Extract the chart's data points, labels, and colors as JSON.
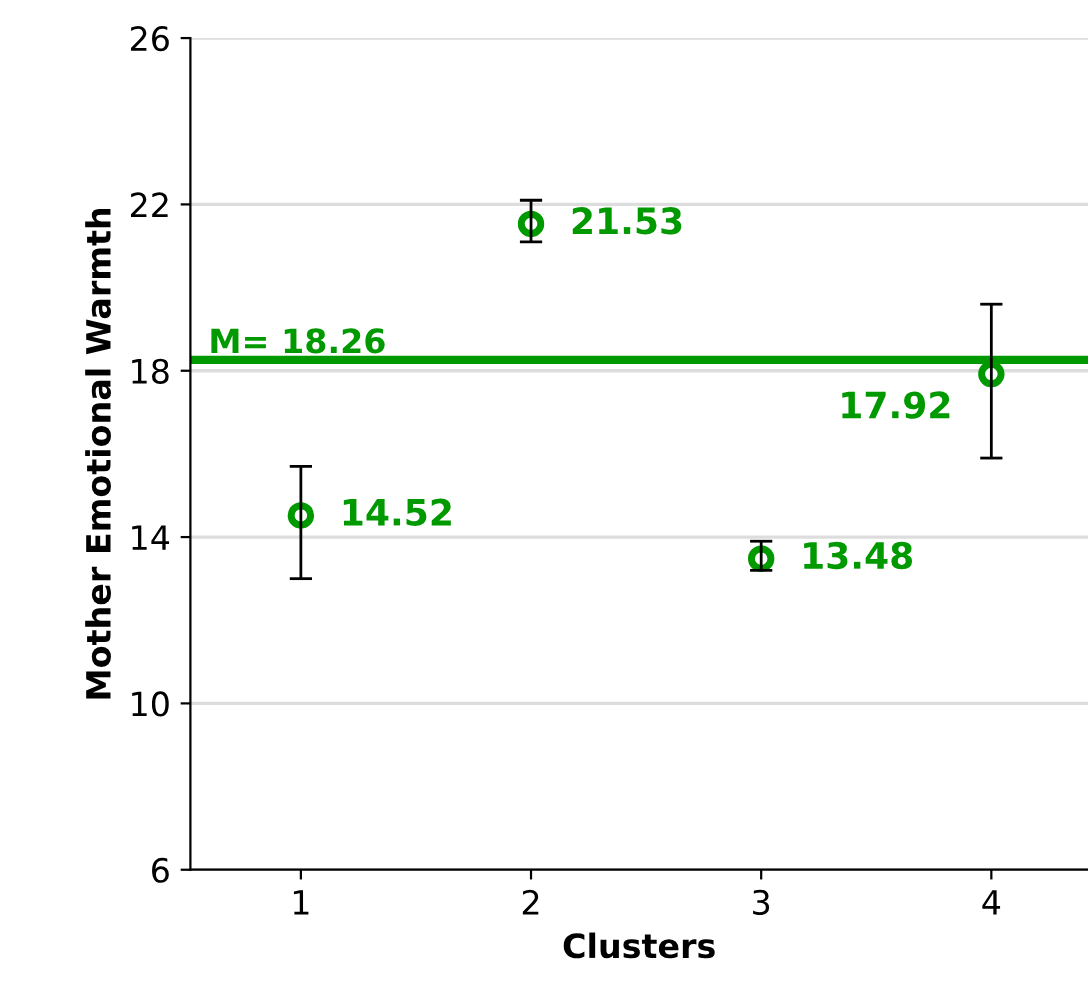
{
  "chart_data": {
    "type": "scatter",
    "xlabel": "Clusters",
    "ylabel": "Mother Emotional Warmth",
    "categories": [
      "1",
      "2",
      "3",
      "4"
    ],
    "series": [
      {
        "color": "#009900",
        "values": [
          14.52,
          21.53,
          13.48,
          17.92
        ],
        "errors": [
          [
            13.0,
            15.7
          ],
          [
            21.1,
            22.1
          ],
          [
            13.2,
            13.9
          ],
          [
            15.9,
            19.6
          ]
        ]
      }
    ],
    "ylim": [
      6,
      26
    ],
    "yticks": [
      6,
      10,
      14,
      18,
      22,
      26
    ],
    "grid": "y",
    "marker": "circle",
    "data_labels": true,
    "ref_lines": [
      {
        "axis": "y",
        "value": 18.26,
        "label": "M= 18.26",
        "color": "#009900",
        "line_style": "solid"
      }
    ]
  }
}
